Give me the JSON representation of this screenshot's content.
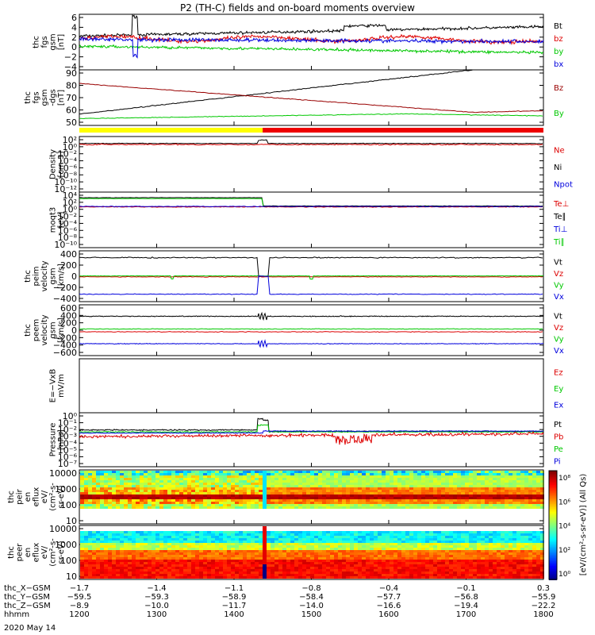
{
  "title": "P2 (TH-C) fields and on-board moments overview",
  "date": "2020 May 14",
  "colors": {
    "black": "#000000",
    "red": "#dd0000",
    "green": "#00c800",
    "blue": "#0000dd",
    "yellow": "#ffff00",
    "darkred": "#990000"
  },
  "mode_bar": {
    "segments": [
      {
        "from": 1200,
        "to": 1437,
        "color": "#ffff00"
      },
      {
        "from": 1437,
        "to": 1800,
        "color": "#ee0000"
      }
    ]
  },
  "chart_data": [
    {
      "type": "line",
      "id": "fgs_gsm",
      "ylabel": [
        "thc",
        "fgs",
        "gsm",
        "[nT]"
      ],
      "ylim": [
        -6,
        6
      ],
      "yticks": [
        "6",
        "4",
        "2",
        "0",
        "−2",
        "−4"
      ],
      "legend": [
        {
          "label": "Bt",
          "color": "#000000"
        },
        {
          "label": "bz",
          "color": "#dd0000"
        },
        {
          "label": "by",
          "color": "#00c800"
        },
        {
          "label": "bx",
          "color": "#0000dd"
        }
      ]
    },
    {
      "type": "line",
      "id": "fgs_gsm_dgs",
      "ylabel": [
        "thc",
        "fgs",
        "gsm",
        "-dgs",
        "[nT]"
      ],
      "ylim": [
        42,
        91
      ],
      "yticks": [
        "90",
        "80",
        "70",
        "60",
        "50"
      ],
      "legend": [
        {
          "label": "Bz",
          "color": "#990000"
        },
        {
          "label": "By",
          "color": "#00c800"
        }
      ]
    },
    {
      "type": "line",
      "id": "density",
      "ylabel": [
        "Density",
        "[cm-3]"
      ],
      "ylim": [
        -13,
        3
      ],
      "scale": "log",
      "yticks": [
        "10²",
        "10⁰",
        "10⁻²",
        "10⁻⁴",
        "10⁻⁶",
        "10⁻⁸",
        "10⁻¹⁰",
        "10⁻¹²"
      ],
      "legend": [
        {
          "label": "Ne",
          "color": "#dd0000"
        },
        {
          "label": "Ni",
          "color": "#000000"
        },
        {
          "label": "Npot",
          "color": "#0000dd"
        }
      ]
    },
    {
      "type": "line",
      "id": "temperature",
      "ylabel": [
        "moqt3",
        "[eV]"
      ],
      "ylim": [
        -13,
        5
      ],
      "scale": "log",
      "yticks": [
        "10⁴",
        "10²",
        "10⁰",
        "10⁻²",
        "10⁻⁴",
        "10⁻⁶",
        "10⁻⁸",
        "10⁻¹⁰"
      ],
      "legend": [
        {
          "label": "Te⊥",
          "color": "#dd0000"
        },
        {
          "label": "Te∥",
          "color": "#000000"
        },
        {
          "label": "Ti⊥",
          "color": "#0000dd"
        },
        {
          "label": "Ti∥",
          "color": "#00c800"
        }
      ]
    },
    {
      "type": "line",
      "id": "peim_velocity",
      "ylabel": [
        "thc",
        "peim",
        "velocity",
        "gsm",
        "[km/s]"
      ],
      "ylim": [
        -410,
        410
      ],
      "yticks": [
        "400",
        "200",
        "0",
        "−200",
        "−400"
      ],
      "legend": [
        {
          "label": "Vt",
          "color": "#000000"
        },
        {
          "label": "Vz",
          "color": "#dd0000"
        },
        {
          "label": "Vy",
          "color": "#00c800"
        },
        {
          "label": "Vx",
          "color": "#0000dd"
        }
      ]
    },
    {
      "type": "line",
      "id": "peem_velocity",
      "ylabel": [
        "thc",
        "peem",
        "velocity",
        "gsm",
        "[km/s]"
      ],
      "ylim": [
        -620,
        620
      ],
      "yticks": [
        "600",
        "400",
        "200",
        "0",
        "−200",
        "−400",
        "−600"
      ],
      "legend": [
        {
          "label": "Vt",
          "color": "#000000"
        },
        {
          "label": "Vz",
          "color": "#dd0000"
        },
        {
          "label": "Vy",
          "color": "#00c800"
        },
        {
          "label": "Vx",
          "color": "#0000dd"
        }
      ]
    },
    {
      "type": "line",
      "id": "efield",
      "ylabel": [
        "E=−VxB",
        "mV/m"
      ],
      "ylim": [
        -1,
        1
      ],
      "yticks": [],
      "legend": [
        {
          "label": "Ez",
          "color": "#dd0000"
        },
        {
          "label": "Ey",
          "color": "#00c800"
        },
        {
          "label": "Ex",
          "color": "#0000dd"
        }
      ]
    },
    {
      "type": "line",
      "id": "pressure",
      "ylabel": [
        "Pressure",
        "[nPa]"
      ],
      "ylim": [
        -7.2,
        0
      ],
      "scale": "log",
      "yticks": [
        "10⁰",
        "10⁻¹",
        "10⁻²",
        "10⁻³",
        "10⁻⁴",
        "10⁻⁵",
        "10⁻⁶",
        "10⁻⁷"
      ],
      "legend": [
        {
          "label": "Pt",
          "color": "#000000"
        },
        {
          "label": "Pb",
          "color": "#dd0000"
        },
        {
          "label": "Pe",
          "color": "#00c800"
        },
        {
          "label": "Pi",
          "color": "#0000dd"
        }
      ]
    },
    {
      "type": "heatmap",
      "id": "peir_eflux",
      "ylabel": [
        "thc",
        "peir",
        "en",
        "eflux",
        "eV/",
        "(cm²-s-",
        "sr-eV)"
      ],
      "ylim": [
        5,
        15000
      ],
      "scale": "log",
      "yticks": [
        "10000",
        "1000",
        "100",
        "10"
      ]
    },
    {
      "type": "heatmap",
      "id": "peer_eflux",
      "ylabel": [
        "thc",
        "peer",
        "en",
        "eflux",
        "eV/",
        "(cm²-s-",
        "sr-eV)"
      ],
      "ylim": [
        5,
        15000
      ],
      "scale": "log",
      "yticks": [
        "10000",
        "1000",
        "100",
        "10"
      ]
    }
  ],
  "colorbar": {
    "label": "[eV/(cm²-s-sr-eV)] (All Qs)",
    "ticks": [
      "10⁸",
      "10⁶",
      "10⁴",
      "10²",
      "10⁰"
    ]
  },
  "x_axis": {
    "xlim": [
      1200,
      1800
    ],
    "rows": [
      {
        "label": "thc_X−GSM",
        "values": [
          "−1.7",
          "−1.4",
          "−1.1",
          "−0.8",
          "−0.4",
          "−0.1",
          "0.3"
        ]
      },
      {
        "label": "thc_Y−GSM",
        "values": [
          "−59.5",
          "−59.3",
          "−58.9",
          "−58.4",
          "−57.7",
          "−56.8",
          "−55.9"
        ]
      },
      {
        "label": "thc_Z−GSM",
        "values": [
          "−8.9",
          "−10.0",
          "−11.7",
          "−14.0",
          "−16.6",
          "−19.4",
          "−22.2"
        ]
      },
      {
        "label": "hhmm",
        "values": [
          "1200",
          "1300",
          "1400",
          "1500",
          "1600",
          "1700",
          "1800"
        ]
      }
    ]
  }
}
